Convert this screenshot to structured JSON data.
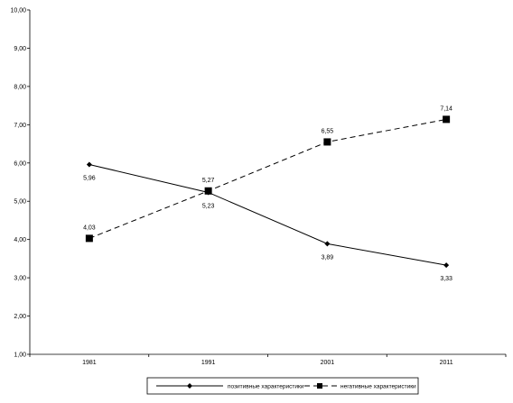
{
  "chart_data": {
    "type": "line",
    "categories": [
      "1981",
      "1991",
      "2001",
      "2011"
    ],
    "ylim": [
      1.0,
      10.0
    ],
    "ytick_labels": [
      "1,00",
      "2,00",
      "3,00",
      "4,00",
      "5,00",
      "6,00",
      "7,00",
      "8,00",
      "9,00",
      "10,00"
    ],
    "grid": false,
    "legend_position": "bottom",
    "series": [
      {
        "name": "позитивные характеристики",
        "values": [
          5.96,
          5.23,
          3.89,
          3.33
        ],
        "labels": [
          "5,96",
          "5,23",
          "3,89",
          "3,33"
        ],
        "style": "solid",
        "marker": "diamond",
        "color": "#000000"
      },
      {
        "name": "негативные характеристики",
        "values": [
          4.03,
          5.27,
          6.55,
          7.14
        ],
        "labels": [
          "4,03",
          "5,27",
          "6,55",
          "7,14"
        ],
        "style": "dashed",
        "marker": "square",
        "color": "#000000"
      }
    ]
  }
}
